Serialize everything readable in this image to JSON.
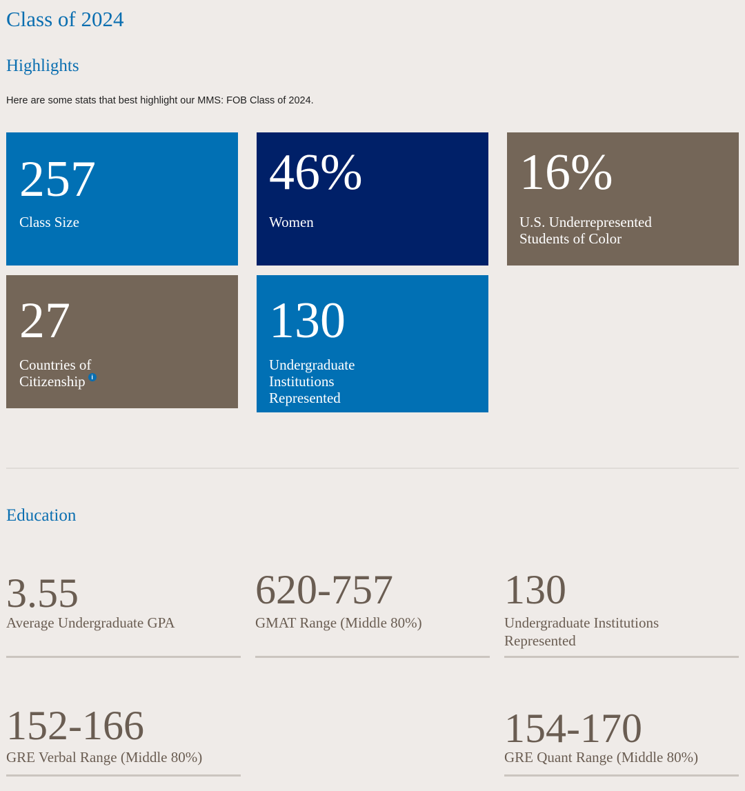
{
  "page": {
    "title": "Class of 2024"
  },
  "highlights": {
    "heading": "Highlights",
    "intro": "Here are some stats that best highlight our MMS: FOB Class of 2024.",
    "tiles": [
      {
        "value": "257",
        "label": "Class Size",
        "color": "#0170b4"
      },
      {
        "value": "46%",
        "label": "Women",
        "color": "#002068"
      },
      {
        "value": "16%",
        "label": "U.S. Underrepresented Students of Color",
        "color": "#746658"
      },
      {
        "value": "27",
        "label": "Countries of Citizenship",
        "color": "#746658",
        "info_icon": "info-icon"
      },
      {
        "value": "130",
        "label": "Undergraduate Institutions Represented",
        "color": "#0170b4"
      }
    ]
  },
  "education": {
    "heading": "Education",
    "stats": [
      {
        "value": "3.55",
        "label": "Average Undergraduate GPA"
      },
      {
        "value": "620-757",
        "label": "GMAT Range (Middle 80%)"
      },
      {
        "value": "130",
        "label": "Undergraduate Institutions Represented"
      },
      {
        "value": "152-166",
        "label": "GRE Verbal Range (Middle 80%)"
      },
      {
        "value": "154-170",
        "label": "GRE Quant Range (Middle 80%)"
      }
    ]
  },
  "colors": {
    "background": "#efebe8",
    "accent_blue": "#0a6eb0",
    "stat_text": "#6a5d52"
  }
}
